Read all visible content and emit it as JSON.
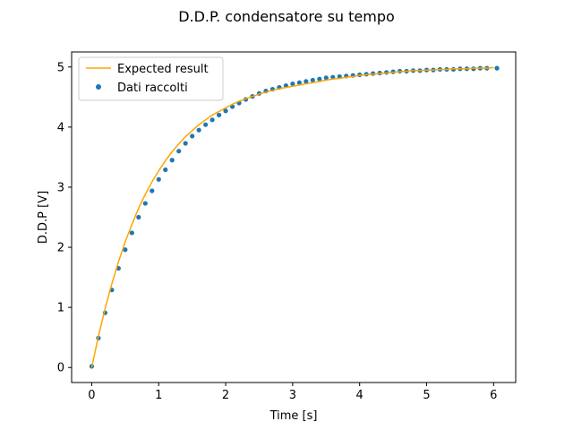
{
  "chart_data": {
    "type": "line",
    "title": "D.D.P. condensatore su tempo",
    "xlabel": "Time [s]",
    "ylabel": "D.D.P [V]",
    "xlim": [
      -0.3,
      6.33
    ],
    "ylim": [
      -0.25,
      5.25
    ],
    "x_ticks": [
      0,
      1,
      2,
      3,
      4,
      5,
      6
    ],
    "y_ticks": [
      0,
      1,
      2,
      3,
      4,
      5
    ],
    "grid": false,
    "legend": {
      "position": "top-left"
    },
    "series": [
      {
        "name": "Expected result",
        "kind": "line",
        "color": "#ffa500",
        "x": [
          0,
          0.1,
          0.2,
          0.3,
          0.4,
          0.5,
          0.6,
          0.7,
          0.8,
          0.9,
          1.0,
          1.1,
          1.2,
          1.3,
          1.4,
          1.5,
          1.6,
          1.7,
          1.8,
          1.9,
          2.0,
          2.1,
          2.2,
          2.3,
          2.4,
          2.5,
          2.6,
          2.7,
          2.8,
          2.9,
          3.0,
          3.1,
          3.2,
          3.3,
          3.4,
          3.5,
          3.6,
          3.7,
          3.8,
          3.9,
          4.0,
          4.1,
          4.2,
          4.3,
          4.4,
          4.5,
          4.6,
          4.7,
          4.8,
          4.9,
          5.0,
          5.1,
          5.2,
          5.3,
          5.4,
          5.5,
          5.6,
          5.7,
          5.8,
          5.9,
          6.0
        ],
        "y": [
          0.0,
          0.52,
          0.98,
          1.39,
          1.76,
          2.09,
          2.38,
          2.65,
          2.88,
          3.09,
          3.27,
          3.44,
          3.59,
          3.72,
          3.84,
          3.94,
          4.04,
          4.12,
          4.2,
          4.26,
          4.32,
          4.38,
          4.43,
          4.47,
          4.51,
          4.55,
          4.58,
          4.61,
          4.64,
          4.66,
          4.68,
          4.7,
          4.72,
          4.74,
          4.76,
          4.78,
          4.8,
          4.81,
          4.83,
          4.84,
          4.86,
          4.87,
          4.88,
          4.89,
          4.9,
          4.91,
          4.92,
          4.93,
          4.94,
          4.94,
          4.95,
          4.95,
          4.96,
          4.96,
          4.97,
          4.97,
          4.97,
          4.98,
          4.98,
          4.98,
          4.99
        ]
      },
      {
        "name": "Dati raccolti",
        "kind": "scatter",
        "color": "#1f77b4",
        "x": [
          0.0,
          0.1,
          0.2,
          0.3,
          0.4,
          0.5,
          0.6,
          0.7,
          0.8,
          0.9,
          1.0,
          1.1,
          1.2,
          1.3,
          1.4,
          1.5,
          1.6,
          1.7,
          1.8,
          1.9,
          2.0,
          2.1,
          2.2,
          2.3,
          2.4,
          2.5,
          2.6,
          2.7,
          2.8,
          2.9,
          3.0,
          3.1,
          3.2,
          3.3,
          3.4,
          3.5,
          3.6,
          3.7,
          3.8,
          3.9,
          4.0,
          4.1,
          4.2,
          4.3,
          4.4,
          4.5,
          4.6,
          4.7,
          4.8,
          4.9,
          5.0,
          5.1,
          5.2,
          5.3,
          5.4,
          5.5,
          5.6,
          5.7,
          5.8,
          5.9,
          6.05
        ],
        "y": [
          0.02,
          0.49,
          0.91,
          1.29,
          1.65,
          1.96,
          2.24,
          2.5,
          2.73,
          2.94,
          3.13,
          3.29,
          3.45,
          3.6,
          3.73,
          3.85,
          3.95,
          4.04,
          4.12,
          4.2,
          4.27,
          4.34,
          4.4,
          4.46,
          4.51,
          4.56,
          4.6,
          4.63,
          4.66,
          4.69,
          4.72,
          4.74,
          4.76,
          4.78,
          4.8,
          4.82,
          4.83,
          4.84,
          4.85,
          4.86,
          4.87,
          4.88,
          4.89,
          4.9,
          4.91,
          4.92,
          4.93,
          4.93,
          4.94,
          4.94,
          4.95,
          4.95,
          4.96,
          4.96,
          4.96,
          4.97,
          4.97,
          4.97,
          4.98,
          4.98,
          4.98
        ]
      }
    ]
  }
}
